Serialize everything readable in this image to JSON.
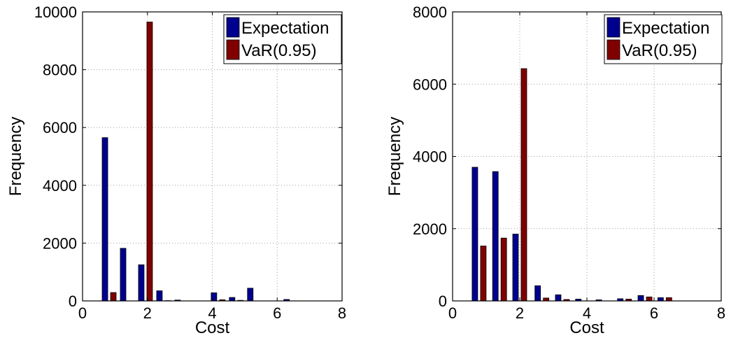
{
  "chart_data": [
    {
      "type": "bar",
      "xlabel": "Cost",
      "ylabel": "Frequency",
      "xlim": [
        0,
        8
      ],
      "ylim": [
        0,
        10000
      ],
      "xticks": [
        "0",
        "2",
        "4",
        "6",
        "8"
      ],
      "yticks": [
        "0",
        "2000",
        "4000",
        "6000",
        "8000",
        "10000"
      ],
      "grid": true,
      "legend_position": "top-right",
      "bin_centers": [
        0.82,
        1.38,
        1.94,
        2.5,
        3.06,
        3.62,
        4.18,
        4.74,
        5.3,
        5.86,
        6.42
      ],
      "series": [
        {
          "name": "Expectation",
          "color": "#00008f",
          "values": [
            5650,
            1820,
            1250,
            350,
            30,
            0,
            280,
            120,
            440,
            0,
            50
          ]
        },
        {
          "name": "VaR(0.95)",
          "color": "#800000",
          "values": [
            290,
            0,
            9650,
            10,
            0,
            0,
            40,
            20,
            0,
            0,
            0
          ]
        }
      ]
    },
    {
      "type": "bar",
      "xlabel": "Cost",
      "ylabel": "Frequency",
      "xlim": [
        0,
        8
      ],
      "ylim": [
        0,
        8000
      ],
      "xticks": [
        "0",
        "2",
        "4",
        "6",
        "8"
      ],
      "yticks": [
        "0",
        "2000",
        "4000",
        "6000",
        "8000"
      ],
      "grid": true,
      "legend_position": "top-right",
      "bin_centers": [
        0.79,
        1.4,
        2.0,
        2.66,
        3.27,
        3.87,
        4.48,
        5.12,
        5.73,
        6.32
      ],
      "series": [
        {
          "name": "Expectation",
          "color": "#00008f",
          "values": [
            3700,
            3580,
            1850,
            420,
            170,
            50,
            30,
            60,
            150,
            90
          ]
        },
        {
          "name": "VaR(0.95)",
          "color": "#800000",
          "values": [
            1520,
            1740,
            6430,
            80,
            40,
            0,
            0,
            50,
            110,
            90
          ]
        }
      ]
    }
  ]
}
